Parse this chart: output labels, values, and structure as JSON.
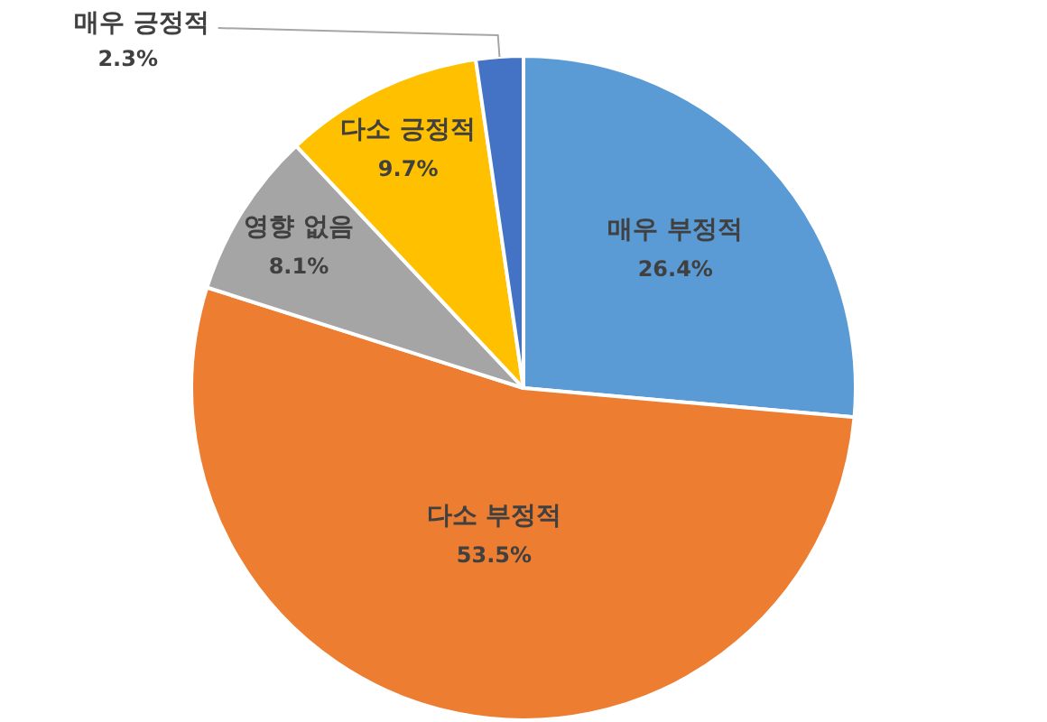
{
  "chart_data": {
    "type": "pie",
    "categories": [
      "매우 부정적",
      "다소 부정적",
      "영향 없음",
      "다소 긍정적",
      "매우 긍정적"
    ],
    "values": [
      26.4,
      53.5,
      8.1,
      9.7,
      2.3
    ],
    "colors": [
      "#5b9bd5",
      "#ed7d31",
      "#a5a5a5",
      "#ffc000",
      "#4472c4"
    ],
    "value_labels": [
      "26.4%",
      "53.5%",
      "8.1%",
      "9.7%",
      "2.3%"
    ],
    "legend": false
  }
}
